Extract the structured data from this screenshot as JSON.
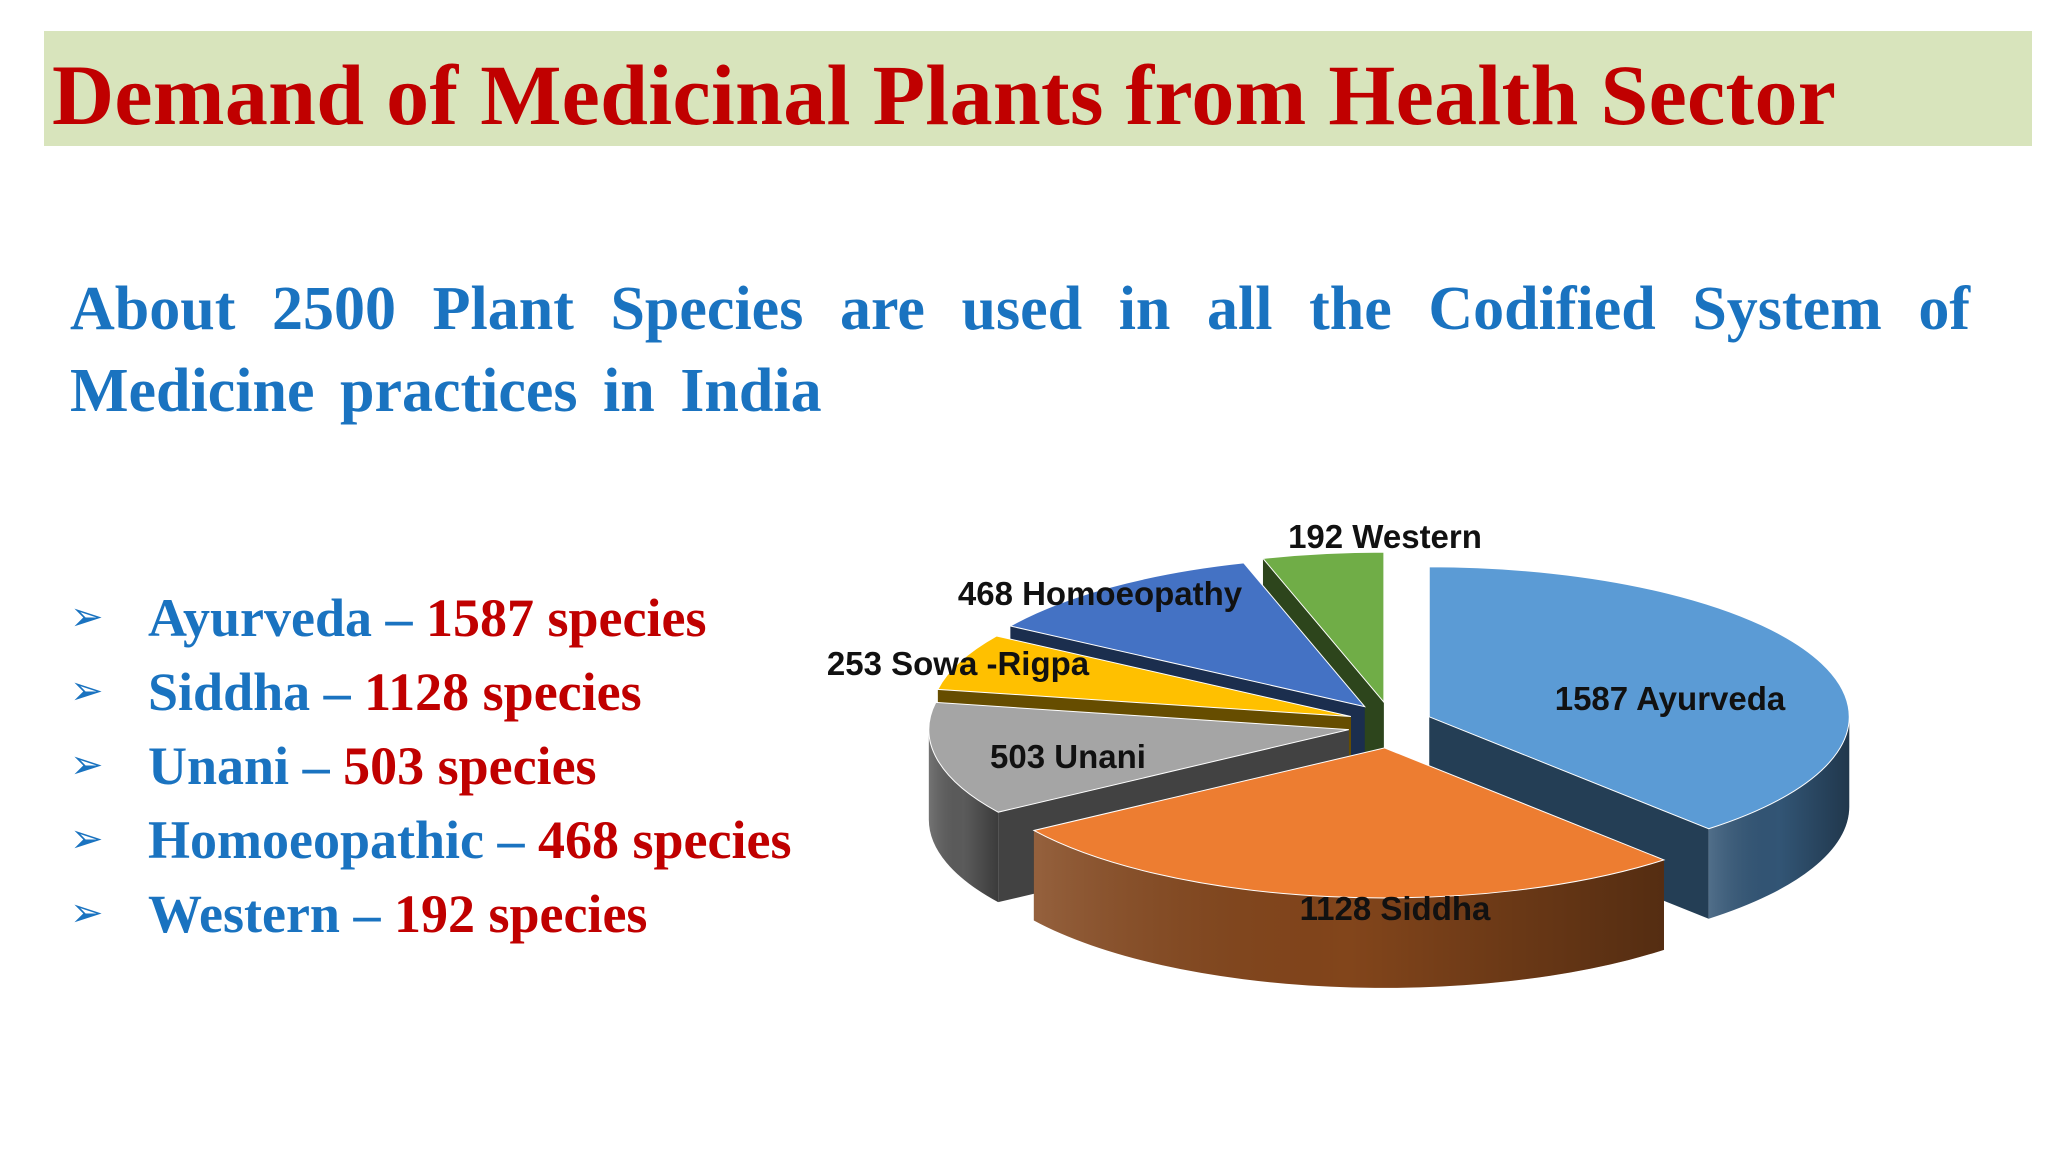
{
  "slide": {
    "title": "Demand of Medicinal Plants from Health Sector",
    "subtitle": "About 2500 Plant Species are used in all the Codified System of Medicine practices in India",
    "bullets": [
      {
        "system": "Ayurveda",
        "count": "1587 species"
      },
      {
        "system": "Siddha",
        "count": "1128 species"
      },
      {
        "system": "Unani",
        "count": "503 species"
      },
      {
        "system": "Homoeopathic",
        "count": "468 species"
      },
      {
        "system": "Western",
        "count": "192 species"
      }
    ],
    "dash": "–",
    "arrow_icon": "➢"
  },
  "chart_data": {
    "type": "pie",
    "style": "3d-exploded",
    "slices": [
      {
        "label": "1587 Ayurveda",
        "category": "Ayurveda",
        "value": 1587,
        "color": "#5b9bd5"
      },
      {
        "label": "1128 Siddha",
        "category": "Siddha",
        "value": 1128,
        "color": "#ed7d31"
      },
      {
        "label": "503 Unani",
        "category": "Unani",
        "value": 503,
        "color": "#a5a5a5"
      },
      {
        "label": "253 Sowa -Rigpa",
        "category": "Sowa-Rigpa",
        "value": 253,
        "color": "#ffc000"
      },
      {
        "label": "468 Homoeopathy",
        "category": "Homoeopathy",
        "value": 468,
        "color": "#4472c4"
      },
      {
        "label": "192 Western",
        "category": "Western",
        "value": 192,
        "color": "#70ad47"
      }
    ]
  }
}
